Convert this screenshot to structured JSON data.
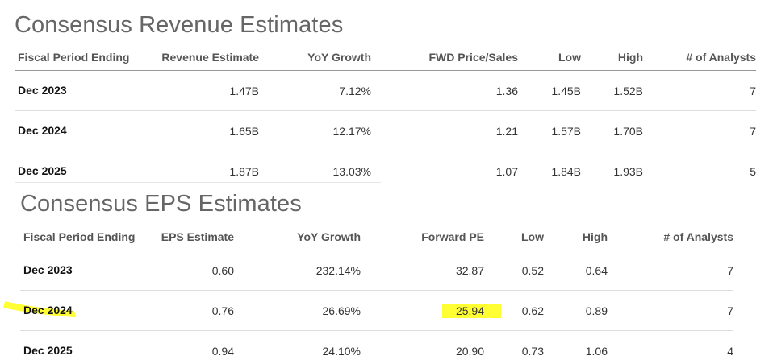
{
  "revenue": {
    "title": "Consensus Revenue Estimates",
    "headers": [
      "Fiscal Period Ending",
      "Revenue Estimate",
      "YoY Growth",
      "FWD Price/Sales",
      "Low",
      "High",
      "# of Analysts"
    ],
    "rows": [
      [
        "Dec 2023",
        "1.47B",
        "7.12%",
        "1.36",
        "1.45B",
        "1.52B",
        "7"
      ],
      [
        "Dec 2024",
        "1.65B",
        "12.17%",
        "1.21",
        "1.57B",
        "1.70B",
        "7"
      ],
      [
        "Dec 2025",
        "1.87B",
        "13.03%",
        "1.07",
        "1.84B",
        "1.93B",
        "5"
      ]
    ]
  },
  "eps": {
    "title": "Consensus EPS Estimates",
    "headers": [
      "Fiscal Period Ending",
      "EPS Estimate",
      "YoY Growth",
      "Forward PE",
      "Low",
      "High",
      "# of Analysts"
    ],
    "rows": [
      [
        "Dec 2023",
        "0.60",
        "232.14%",
        "32.87",
        "0.52",
        "0.64",
        "7"
      ],
      [
        "Dec 2024",
        "0.76",
        "26.69%",
        "25.94",
        "0.62",
        "0.89",
        "7"
      ],
      [
        "Dec 2025",
        "0.94",
        "24.10%",
        "20.90",
        "0.73",
        "1.06",
        "4"
      ]
    ]
  },
  "highlight_color": "#ffff33"
}
